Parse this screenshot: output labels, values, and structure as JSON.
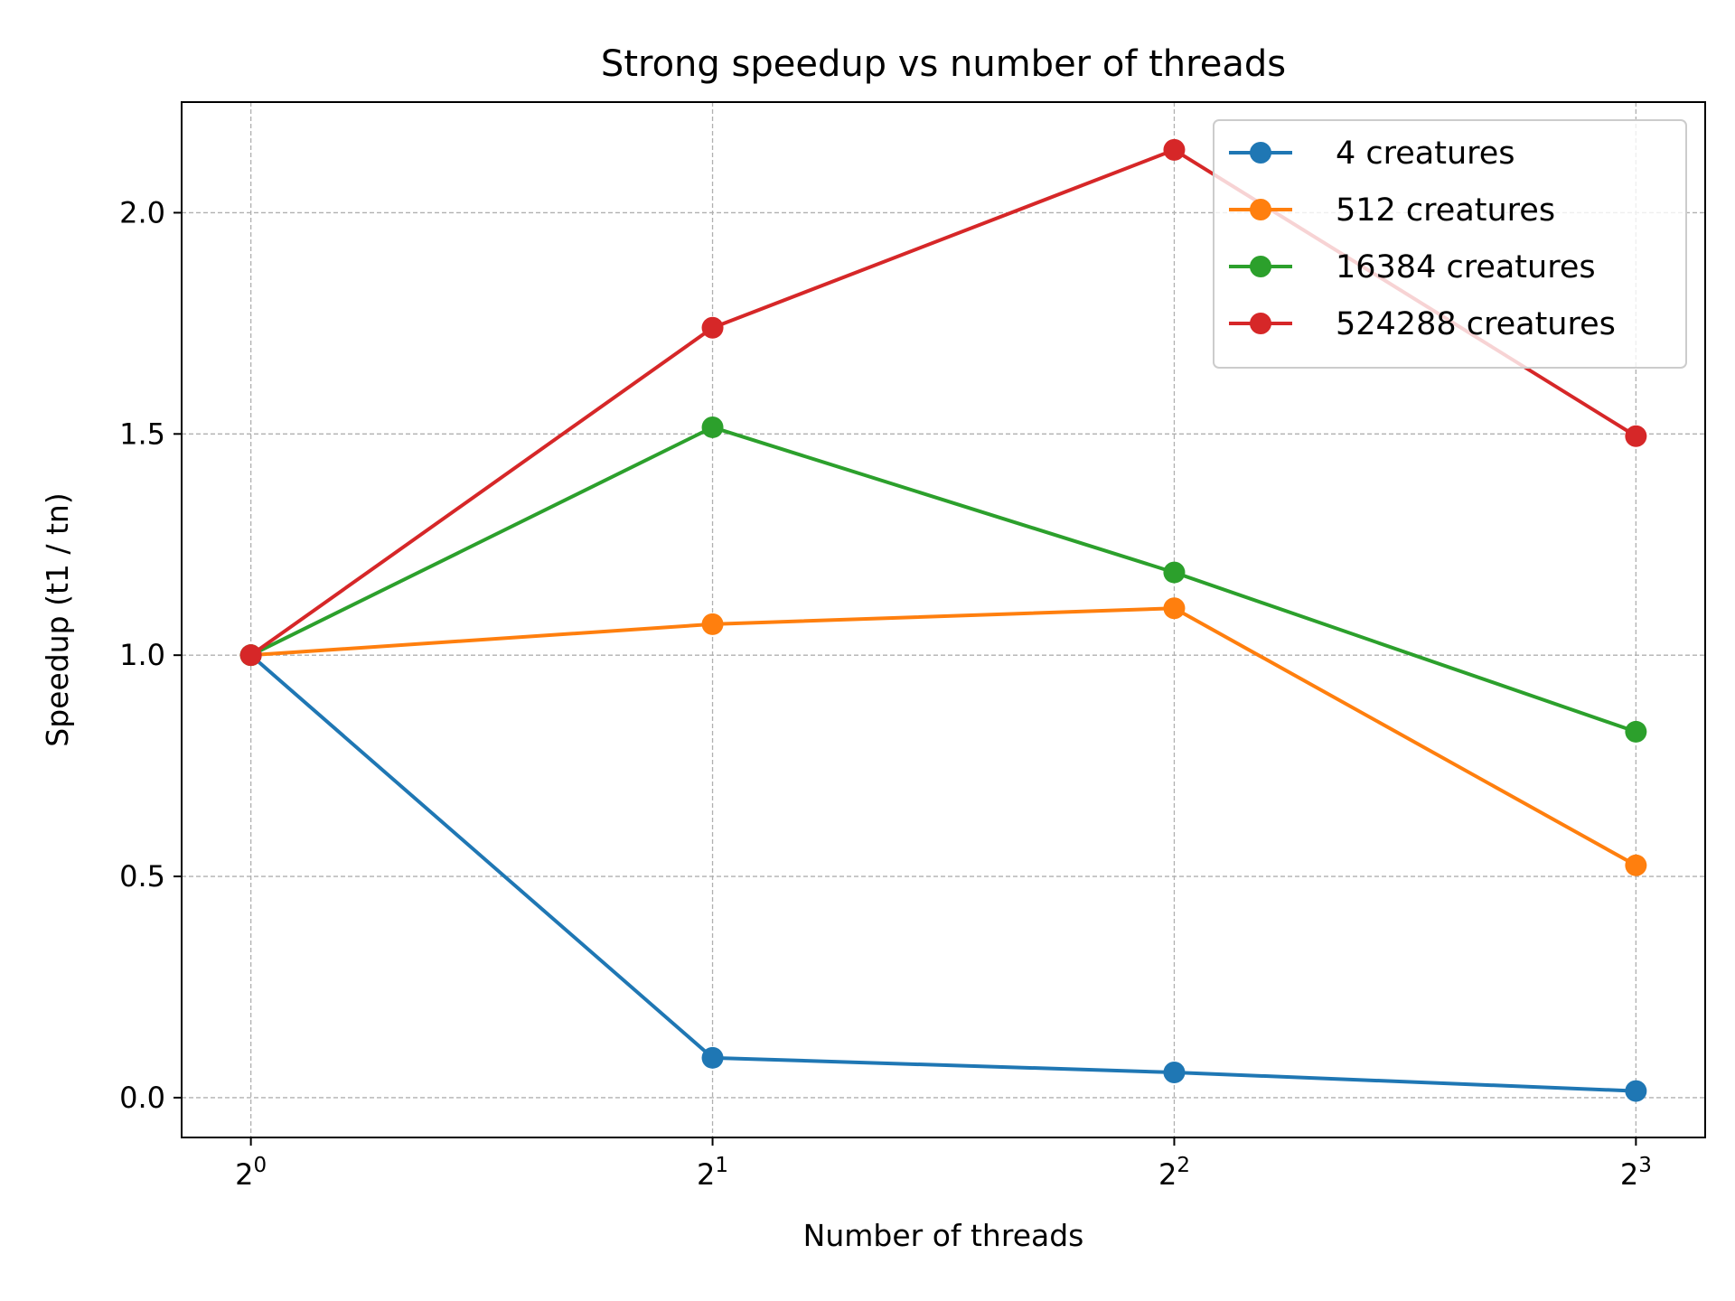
{
  "chart_data": {
    "type": "line",
    "title": "Strong speedup vs number of threads",
    "xlabel": "Number of threads",
    "ylabel": "Speedup (t1 / tn)",
    "x": [
      1,
      2,
      4,
      8
    ],
    "x_scale": "log2",
    "x_tick_labels": [
      {
        "base": "2",
        "exp": "0"
      },
      {
        "base": "2",
        "exp": "1"
      },
      {
        "base": "2",
        "exp": "2"
      },
      {
        "base": "2",
        "exp": "3"
      }
    ],
    "ylim": [
      -0.09,
      2.25
    ],
    "y_ticks": [
      0.0,
      0.5,
      1.0,
      1.5,
      2.0
    ],
    "y_tick_labels": [
      "0.0",
      "0.5",
      "1.0",
      "1.5",
      "2.0"
    ],
    "grid": true,
    "legend_position": "top-right",
    "series": [
      {
        "name": "4 creatures",
        "color": "#1f77b4",
        "values": [
          1.0,
          0.09,
          0.057,
          0.015
        ]
      },
      {
        "name": "512 creatures",
        "color": "#ff7f0e",
        "values": [
          1.0,
          1.07,
          1.106,
          0.525
        ]
      },
      {
        "name": "16384 creatures",
        "color": "#2ca02c",
        "values": [
          1.0,
          1.515,
          1.187,
          0.827
        ]
      },
      {
        "name": "524288 creatures",
        "color": "#d62728",
        "values": [
          1.0,
          1.74,
          2.142,
          1.495
        ]
      }
    ]
  }
}
